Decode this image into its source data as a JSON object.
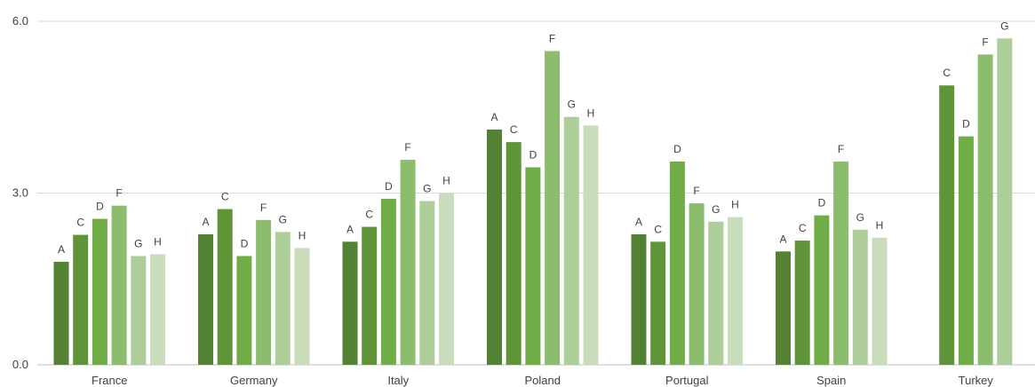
{
  "chart_data": {
    "type": "bar",
    "title": "",
    "xlabel": "",
    "ylabel": "",
    "ylim": [
      0,
      6
    ],
    "yticks": [
      "0.0",
      "3.0",
      "6.0"
    ],
    "grid": true,
    "categories": [
      "France",
      "Germany",
      "Italy",
      "Poland",
      "Portugal",
      "Spain",
      "Turkey"
    ],
    "series_labels": [
      "A",
      "C",
      "D",
      "F",
      "G",
      "H"
    ],
    "series_colors": {
      "A": "#548235",
      "C": "#609439",
      "D": "#70AD47",
      "F": "#8CBC6E",
      "G": "#ADCD99",
      "H": "#C9DDBD"
    },
    "groups": [
      {
        "category": "France",
        "bars": [
          {
            "label": "A",
            "value": 1.8
          },
          {
            "label": "C",
            "value": 2.27
          },
          {
            "label": "D",
            "value": 2.55
          },
          {
            "label": "F",
            "value": 2.78
          },
          {
            "label": "G",
            "value": 1.9
          },
          {
            "label": "H",
            "value": 1.93
          }
        ]
      },
      {
        "category": "Germany",
        "bars": [
          {
            "label": "A",
            "value": 2.28
          },
          {
            "label": "C",
            "value": 2.72
          },
          {
            "label": "D",
            "value": 1.9
          },
          {
            "label": "F",
            "value": 2.53
          },
          {
            "label": "G",
            "value": 2.32
          },
          {
            "label": "H",
            "value": 2.04
          }
        ]
      },
      {
        "category": "Italy",
        "bars": [
          {
            "label": "A",
            "value": 2.15
          },
          {
            "label": "C",
            "value": 2.41
          },
          {
            "label": "D",
            "value": 2.9
          },
          {
            "label": "F",
            "value": 3.58
          },
          {
            "label": "G",
            "value": 2.86
          },
          {
            "label": "H",
            "value": 3.0
          }
        ]
      },
      {
        "category": "Poland",
        "bars": [
          {
            "label": "A",
            "value": 4.11
          },
          {
            "label": "C",
            "value": 3.89
          },
          {
            "label": "D",
            "value": 3.45
          },
          {
            "label": "F",
            "value": 5.48
          },
          {
            "label": "G",
            "value": 4.33
          },
          {
            "label": "H",
            "value": 4.18
          }
        ]
      },
      {
        "category": "Portugal",
        "bars": [
          {
            "label": "A",
            "value": 2.28
          },
          {
            "label": "C",
            "value": 2.15
          },
          {
            "label": "D",
            "value": 3.55
          },
          {
            "label": "F",
            "value": 2.82
          },
          {
            "label": "G",
            "value": 2.5
          },
          {
            "label": "H",
            "value": 2.58
          }
        ]
      },
      {
        "category": "Spain",
        "bars": [
          {
            "label": "A",
            "value": 1.98
          },
          {
            "label": "C",
            "value": 2.17
          },
          {
            "label": "D",
            "value": 2.61
          },
          {
            "label": "F",
            "value": 3.55
          },
          {
            "label": "G",
            "value": 2.36
          },
          {
            "label": "H",
            "value": 2.22
          }
        ]
      },
      {
        "category": "Turkey",
        "bars": [
          {
            "label": "C",
            "value": 4.88
          },
          {
            "label": "D",
            "value": 3.99
          },
          {
            "label": "F",
            "value": 5.42
          },
          {
            "label": "G",
            "value": 5.7
          }
        ]
      }
    ]
  }
}
